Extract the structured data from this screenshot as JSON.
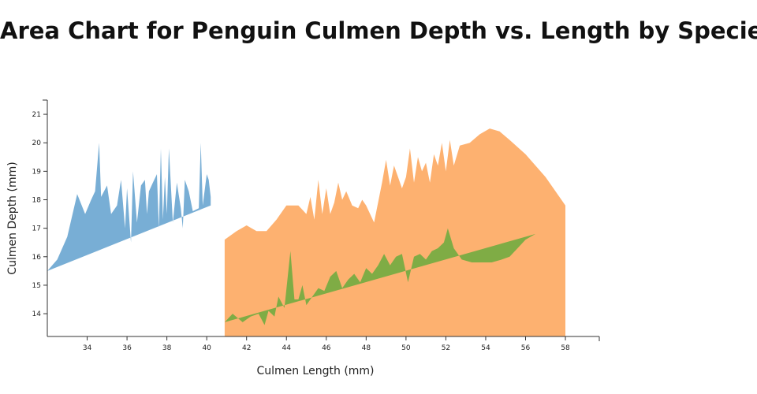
{
  "chart_data": {
    "type": "area",
    "title": "Area Chart for Penguin Culmen Depth vs. Length by Species",
    "xlabel": "Culmen Length (mm)",
    "ylabel": "Culmen Depth (mm)",
    "xlim": [
      32.0,
      59.7
    ],
    "ylim": [
      13.2,
      21.5
    ],
    "x_ticks": [
      34,
      36,
      38,
      40,
      42,
      44,
      46,
      48,
      50,
      52,
      54,
      56,
      58
    ],
    "y_ticks": [
      14,
      15,
      16,
      17,
      18,
      19,
      20,
      21
    ],
    "grid": false,
    "legend": "none",
    "series": [
      {
        "color": "#78aed5",
        "baseline": [
          [
            32.0,
            15.5
          ],
          [
            40.2,
            17.8
          ]
        ],
        "points": [
          [
            32.0,
            15.5
          ],
          [
            32.5,
            15.9
          ],
          [
            33.0,
            16.7
          ],
          [
            33.5,
            18.2
          ],
          [
            33.9,
            17.5
          ],
          [
            34.2,
            18.0
          ],
          [
            34.4,
            18.3
          ],
          [
            34.6,
            20.0
          ],
          [
            34.7,
            18.1
          ],
          [
            35.0,
            18.5
          ],
          [
            35.2,
            17.5
          ],
          [
            35.5,
            17.8
          ],
          [
            35.7,
            18.7
          ],
          [
            35.9,
            17.0
          ],
          [
            36.0,
            18.4
          ],
          [
            36.2,
            16.5
          ],
          [
            36.3,
            19.0
          ],
          [
            36.5,
            17.2
          ],
          [
            36.7,
            18.5
          ],
          [
            36.9,
            18.7
          ],
          [
            37.0,
            17.5
          ],
          [
            37.1,
            18.3
          ],
          [
            37.3,
            18.6
          ],
          [
            37.5,
            18.9
          ],
          [
            37.6,
            17.0
          ],
          [
            37.7,
            19.8
          ],
          [
            37.8,
            17.3
          ],
          [
            37.9,
            18.8
          ],
          [
            38.0,
            17.5
          ],
          [
            38.1,
            19.8
          ],
          [
            38.3,
            17.2
          ],
          [
            38.5,
            18.6
          ],
          [
            38.7,
            17.7
          ],
          [
            38.8,
            17.0
          ],
          [
            38.9,
            18.7
          ],
          [
            39.1,
            18.3
          ],
          [
            39.3,
            17.6
          ],
          [
            39.6,
            17.7
          ],
          [
            39.7,
            20.0
          ],
          [
            39.8,
            17.8
          ],
          [
            40.0,
            18.9
          ],
          [
            40.1,
            18.7
          ],
          [
            40.2,
            18.1
          ]
        ]
      },
      {
        "color": "#fdb170",
        "baseline": [
          [
            40.9,
            13.2
          ],
          [
            58.0,
            13.2
          ]
        ],
        "points": [
          [
            40.9,
            16.6
          ],
          [
            41.5,
            16.9
          ],
          [
            42.0,
            17.1
          ],
          [
            42.5,
            16.9
          ],
          [
            43.0,
            16.9
          ],
          [
            43.5,
            17.3
          ],
          [
            44.0,
            17.8
          ],
          [
            44.6,
            17.8
          ],
          [
            45.0,
            17.5
          ],
          [
            45.2,
            18.1
          ],
          [
            45.4,
            17.3
          ],
          [
            45.6,
            18.7
          ],
          [
            45.8,
            17.5
          ],
          [
            46.0,
            18.4
          ],
          [
            46.2,
            17.5
          ],
          [
            46.4,
            17.9
          ],
          [
            46.6,
            18.6
          ],
          [
            46.8,
            18.0
          ],
          [
            47.0,
            18.3
          ],
          [
            47.3,
            17.8
          ],
          [
            47.6,
            17.7
          ],
          [
            47.8,
            18.0
          ],
          [
            48.0,
            17.8
          ],
          [
            48.4,
            17.2
          ],
          [
            48.8,
            18.6
          ],
          [
            49.0,
            19.4
          ],
          [
            49.2,
            18.5
          ],
          [
            49.4,
            19.2
          ],
          [
            49.6,
            18.8
          ],
          [
            49.8,
            18.4
          ],
          [
            50.0,
            18.8
          ],
          [
            50.2,
            19.8
          ],
          [
            50.4,
            18.6
          ],
          [
            50.6,
            19.5
          ],
          [
            50.8,
            19.0
          ],
          [
            51.0,
            19.3
          ],
          [
            51.2,
            18.6
          ],
          [
            51.4,
            19.6
          ],
          [
            51.6,
            19.2
          ],
          [
            51.8,
            20.0
          ],
          [
            52.0,
            19.0
          ],
          [
            52.2,
            20.1
          ],
          [
            52.4,
            19.2
          ],
          [
            52.7,
            19.9
          ],
          [
            53.2,
            20.0
          ],
          [
            53.7,
            20.3
          ],
          [
            54.2,
            20.5
          ],
          [
            54.7,
            20.4
          ],
          [
            55.2,
            20.1
          ],
          [
            56.0,
            19.6
          ],
          [
            57.0,
            18.8
          ],
          [
            58.0,
            17.8
          ]
        ]
      },
      {
        "color": "#7fac45",
        "baseline": [
          [
            40.9,
            13.7
          ],
          [
            56.5,
            16.8
          ]
        ],
        "points": [
          [
            40.9,
            13.7
          ],
          [
            41.3,
            14.0
          ],
          [
            41.8,
            13.7
          ],
          [
            42.2,
            13.9
          ],
          [
            42.6,
            14.0
          ],
          [
            42.9,
            13.6
          ],
          [
            43.1,
            14.1
          ],
          [
            43.4,
            13.9
          ],
          [
            43.6,
            14.6
          ],
          [
            43.9,
            14.2
          ],
          [
            44.2,
            16.2
          ],
          [
            44.4,
            14.5
          ],
          [
            44.6,
            14.5
          ],
          [
            44.8,
            15.0
          ],
          [
            45.0,
            14.3
          ],
          [
            45.3,
            14.6
          ],
          [
            45.6,
            14.9
          ],
          [
            45.9,
            14.8
          ],
          [
            46.2,
            15.3
          ],
          [
            46.5,
            15.5
          ],
          [
            46.8,
            14.9
          ],
          [
            47.1,
            15.2
          ],
          [
            47.4,
            15.4
          ],
          [
            47.7,
            15.1
          ],
          [
            48.0,
            15.6
          ],
          [
            48.3,
            15.4
          ],
          [
            48.6,
            15.7
          ],
          [
            48.9,
            16.1
          ],
          [
            49.2,
            15.7
          ],
          [
            49.5,
            16.0
          ],
          [
            49.8,
            16.1
          ],
          [
            50.1,
            15.1
          ],
          [
            50.4,
            16.0
          ],
          [
            50.7,
            16.1
          ],
          [
            51.0,
            15.9
          ],
          [
            51.3,
            16.2
          ],
          [
            51.6,
            16.3
          ],
          [
            51.9,
            16.5
          ],
          [
            52.1,
            17.0
          ],
          [
            52.4,
            16.3
          ],
          [
            52.8,
            15.9
          ],
          [
            53.3,
            15.8
          ],
          [
            53.8,
            15.8
          ],
          [
            54.3,
            15.8
          ],
          [
            54.8,
            15.9
          ],
          [
            55.2,
            16.0
          ],
          [
            55.6,
            16.3
          ],
          [
            56.0,
            16.6
          ],
          [
            56.5,
            16.8
          ]
        ]
      }
    ]
  }
}
